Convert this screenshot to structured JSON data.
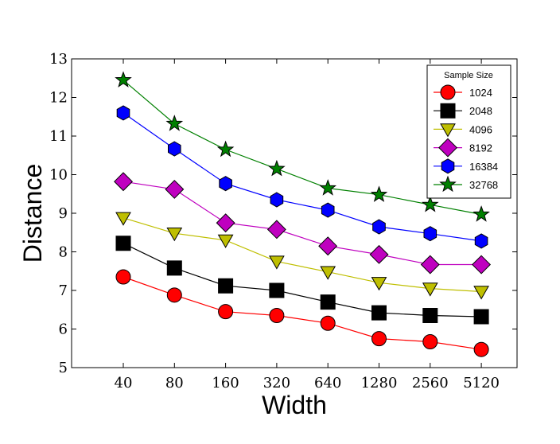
{
  "chart_data": {
    "type": "line",
    "title": "",
    "xlabel": "Width",
    "ylabel": "Distance",
    "categories": [
      "40",
      "80",
      "160",
      "320",
      "640",
      "1280",
      "2560",
      "5120"
    ],
    "ylim": [
      5,
      13
    ],
    "yticks": [
      5,
      6,
      7,
      8,
      9,
      10,
      11,
      12,
      13
    ],
    "grid": false,
    "legend": {
      "title": "Sample Size",
      "position": "top-right"
    },
    "series": [
      {
        "name": "1024",
        "color": "#ff0000",
        "marker": "circle",
        "values": [
          7.35,
          6.88,
          6.45,
          6.35,
          6.15,
          5.75,
          5.67,
          5.47
        ]
      },
      {
        "name": "2048",
        "color": "#000000",
        "marker": "square",
        "values": [
          8.22,
          7.58,
          7.12,
          7.0,
          6.7,
          6.42,
          6.35,
          6.32
        ]
      },
      {
        "name": "4096",
        "color": "#bfbf00",
        "marker": "triangle-down",
        "values": [
          8.88,
          8.48,
          8.3,
          7.75,
          7.48,
          7.2,
          7.05,
          6.97
        ]
      },
      {
        "name": "8192",
        "color": "#bf00bf",
        "marker": "diamond",
        "values": [
          9.82,
          9.62,
          8.75,
          8.58,
          8.15,
          7.93,
          7.67,
          7.67
        ]
      },
      {
        "name": "16384",
        "color": "#0000ff",
        "marker": "hexagon",
        "values": [
          11.6,
          10.67,
          9.77,
          9.35,
          9.08,
          8.65,
          8.47,
          8.28
        ]
      },
      {
        "name": "32768",
        "color": "#008000",
        "marker": "star",
        "values": [
          12.45,
          11.32,
          10.65,
          10.15,
          9.65,
          9.48,
          9.22,
          8.97
        ]
      }
    ]
  }
}
